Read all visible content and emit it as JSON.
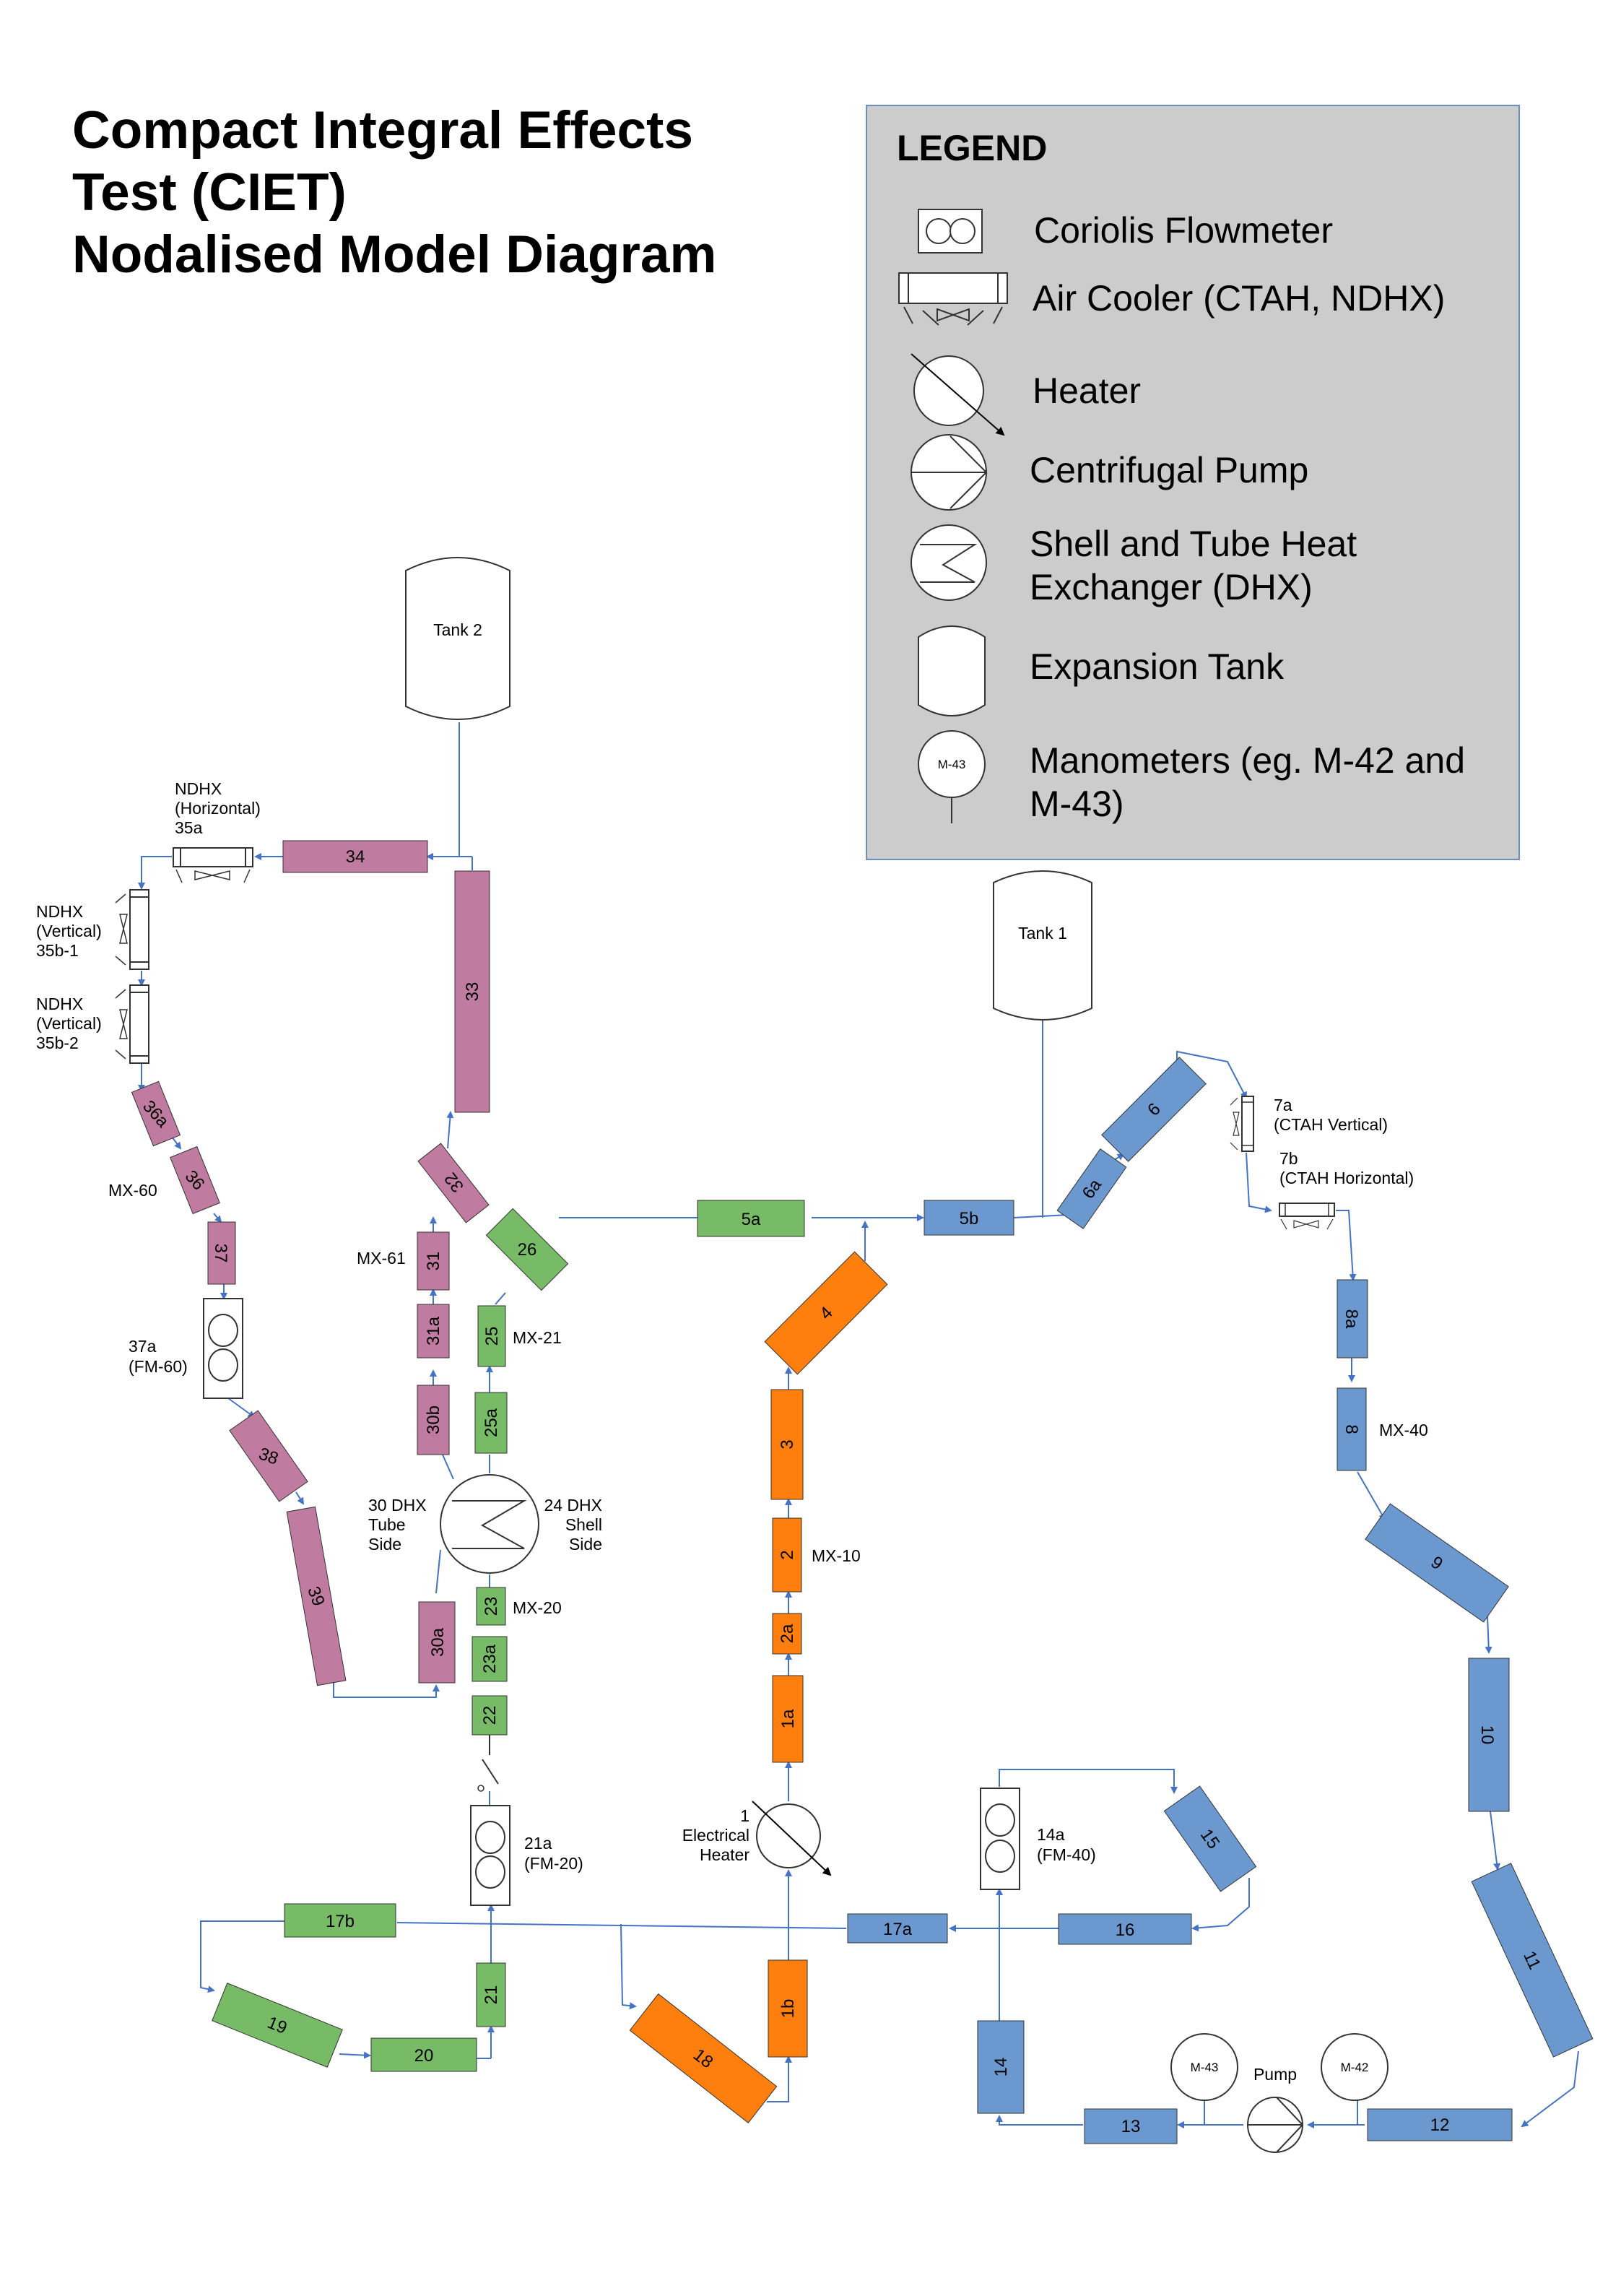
{
  "title": {
    "line1": "Compact Integral Effects",
    "line2": "Test (CIET)",
    "line3": "Nodalised Model Diagram"
  },
  "legend": {
    "heading": "LEGEND",
    "items": {
      "coriolis": "Coriolis Flowmeter",
      "air_cooler": "Air Cooler (CTAH, NDHX)",
      "heater": "Heater",
      "pump": "Centrifugal Pump",
      "dhx_line1": "Shell and Tube Heat",
      "dhx_line2": "Exchanger (DHX)",
      "tank": "Expansion Tank",
      "mano_line1": "Manometers (eg. M-42 and",
      "mano_line2": "M-43)",
      "mano_icon_label": "M-43"
    }
  },
  "colors": {
    "pink": "#c07ca0",
    "green": "#77bb66",
    "orange": "#ff7f0e",
    "blue": "#6b99cf",
    "legend_bg": "#cccccc",
    "line": "#4472c4"
  },
  "nodes": {
    "n1a": "1a",
    "n1b": "1b",
    "n2": "2",
    "n2a": "2a",
    "n3": "3",
    "n4": "4",
    "n5a": "5a",
    "n5b": "5b",
    "n6": "6",
    "n6a": "6a",
    "n8": "8",
    "n8a": "8a",
    "n9": "9",
    "n10": "10",
    "n11": "11",
    "n12": "12",
    "n13": "13",
    "n14": "14",
    "n15": "15",
    "n16": "16",
    "n17a": "17a",
    "n17b": "17b",
    "n18": "18",
    "n19": "19",
    "n20": "20",
    "n21": "21",
    "n22": "22",
    "n23": "23",
    "n23a": "23a",
    "n25": "25",
    "n25a": "25a",
    "n26": "26",
    "n30a": "30a",
    "n30b": "30b",
    "n31": "31",
    "n31a": "31a",
    "n32": "32",
    "n33": "33",
    "n34": "34",
    "n36": "36",
    "n36a": "36a",
    "n37": "37",
    "n38": "38",
    "n39": "39"
  },
  "labels": {
    "tank1": "Tank 1",
    "tank2": "Tank 2",
    "ndhx_h1": "NDHX",
    "ndhx_h2": "(Horizontal)",
    "ndhx_h3": "35a",
    "ndhx_v1_1": "NDHX",
    "ndhx_v1_2": "(Vertical)",
    "ndhx_v1_3": "35b-1",
    "ndhx_v2_1": "NDHX",
    "ndhx_v2_2": "(Vertical)",
    "ndhx_v2_3": "35b-2",
    "ctah_v1": "7a",
    "ctah_v2": "(CTAH Vertical)",
    "ctah_h1": "7b",
    "ctah_h2": "(CTAH Horizontal)",
    "mx60": "MX-60",
    "mx61": "MX-61",
    "mx21": "MX-21",
    "mx20": "MX-20",
    "mx10": "MX-10",
    "mx40": "MX-40",
    "fm60_1": "37a",
    "fm60_2": "(FM-60)",
    "fm20_1": "21a",
    "fm20_2": "(FM-20)",
    "fm40_1": "14a",
    "fm40_2": "(FM-40)",
    "dhx_tube_1": "30 DHX",
    "dhx_tube_2": "Tube",
    "dhx_tube_3": "Side",
    "dhx_shell_1": "24 DHX",
    "dhx_shell_2": "Shell",
    "dhx_shell_3": "Side",
    "heater_1": "1",
    "heater_2": "Electrical",
    "heater_3": "Heater",
    "pump": "Pump",
    "m43": "M-43",
    "m42": "M-42"
  }
}
